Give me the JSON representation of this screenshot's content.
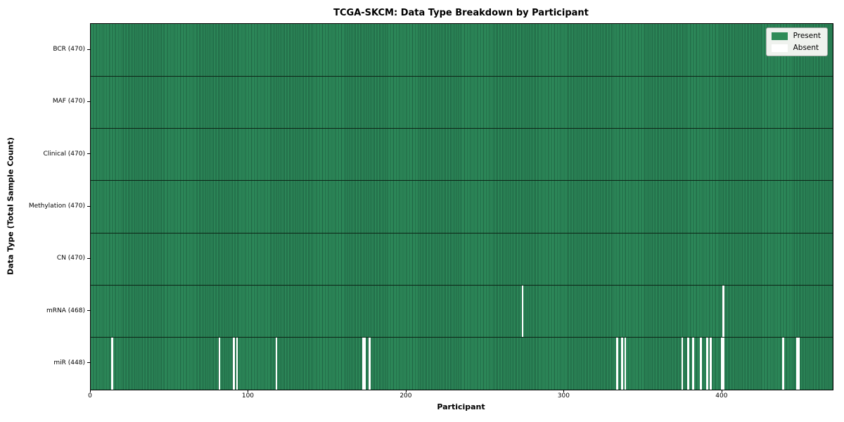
{
  "figure": {
    "title": "TCGA-SKCM: Data Type Breakdown by Participant",
    "xlabel": "Participant",
    "ylabel": "Data Type (Total Sample Count)"
  },
  "legend": {
    "items": [
      {
        "label": "Present",
        "color": "#2e8b57"
      },
      {
        "label": "Absent",
        "color": "#ffffff"
      }
    ]
  },
  "chart_data": {
    "type": "heatmap",
    "title": "TCGA-SKCM: Data Type Breakdown by Participant",
    "xlabel": "Participant",
    "ylabel": "Data Type (Total Sample Count)",
    "xlim": [
      0,
      470
    ],
    "n_participants": 470,
    "x_ticks": [
      0,
      100,
      200,
      300,
      400
    ],
    "grid": false,
    "legend_position": "upper right",
    "legend_entries": [
      "Present",
      "Absent"
    ],
    "rows": [
      {
        "label": "BCR (470)",
        "data_type": "BCR",
        "total_samples": 470,
        "absent_participants": []
      },
      {
        "label": "MAF (470)",
        "data_type": "MAF",
        "total_samples": 470,
        "absent_participants": []
      },
      {
        "label": "Clinical (470)",
        "data_type": "Clinical",
        "total_samples": 470,
        "absent_participants": []
      },
      {
        "label": "Methylation (470)",
        "data_type": "Methylation",
        "total_samples": 470,
        "absent_participants": []
      },
      {
        "label": "CN (470)",
        "data_type": "CN",
        "total_samples": 470,
        "absent_participants": []
      },
      {
        "label": "mRNA (468)",
        "data_type": "mRNA",
        "total_samples": 468,
        "absent_participants": [
          273,
          400
        ]
      },
      {
        "label": "miR (448)",
        "data_type": "miR",
        "total_samples": 448,
        "absent_participants": [
          13,
          81,
          90,
          92,
          117,
          172,
          173,
          176,
          333,
          336,
          338,
          374,
          378,
          381,
          386,
          390,
          392,
          399,
          400,
          438,
          447,
          448
        ]
      }
    ],
    "colors": {
      "present": "#2e8b57",
      "present_edge": "#1e6141",
      "absent": "#ffffff",
      "row_divider": "#0c2416",
      "legend_bg": "#eff2ee"
    }
  }
}
